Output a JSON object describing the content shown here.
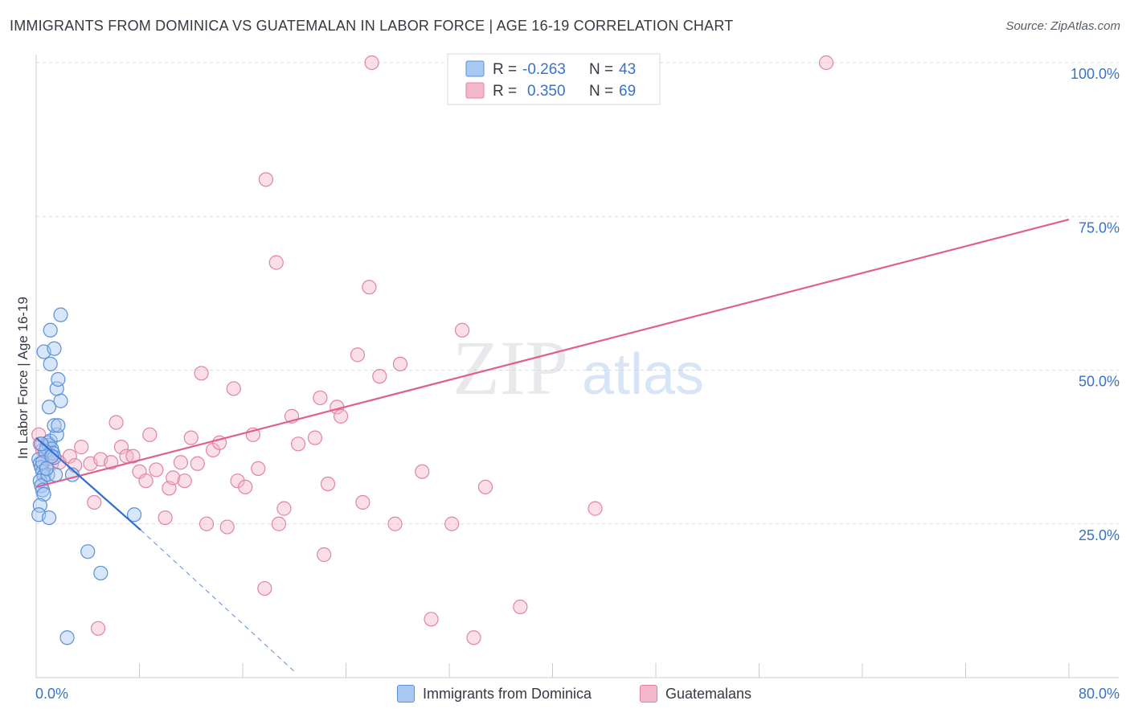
{
  "header": {
    "title": "IMMIGRANTS FROM DOMINICA VS GUATEMALAN IN LABOR FORCE | AGE 16-19 CORRELATION CHART",
    "source": "Source: ZipAtlas.com"
  },
  "colors": {
    "blue_fill": "#a9c8f2",
    "blue_stroke": "#5b8fd6",
    "blue_line": "#2f6fd0",
    "pink_fill": "#f5b8cb",
    "pink_stroke": "#e283a3",
    "pink_line": "#e0608c",
    "axis_text": "#3a72c6",
    "grid": "#d9dde3"
  },
  "chart_data": {
    "type": "scatter",
    "title": "IMMIGRANTS FROM DOMINICA VS GUATEMALAN IN LABOR FORCE | AGE 16-19 CORRELATION CHART",
    "xlabel": "",
    "ylabel": "In Labor Force | Age 16-19",
    "xlim": [
      0,
      80
    ],
    "ylim": [
      0,
      100
    ],
    "x_tick_labels": [
      "0.0%",
      "80.0%"
    ],
    "y_ticks": [
      25,
      50,
      75,
      100
    ],
    "y_tick_labels": [
      "25.0%",
      "50.0%",
      "75.0%",
      "100.0%"
    ],
    "grid": true,
    "watermark": {
      "zip": "ZIP",
      "atlas": "atlas"
    },
    "legend": {
      "rows": [
        {
          "r_label": "R =",
          "r_value": "-0.263",
          "n_label": "N =",
          "n_value": "43"
        },
        {
          "r_label": "R =",
          "r_value": "0.350",
          "n_label": "N =",
          "n_value": "69"
        }
      ]
    },
    "series": [
      {
        "name": "Immigrants from Dominica",
        "color": "blue",
        "points": [
          [
            0.2,
            35.5
          ],
          [
            0.3,
            34.8
          ],
          [
            0.4,
            34.2
          ],
          [
            0.5,
            33.5
          ],
          [
            0.6,
            32.8
          ],
          [
            0.3,
            32.0
          ],
          [
            0.4,
            31.2
          ],
          [
            0.5,
            30.5
          ],
          [
            0.6,
            29.8
          ],
          [
            0.3,
            28.0
          ],
          [
            0.2,
            26.5
          ],
          [
            0.8,
            37.5
          ],
          [
            0.9,
            38.2
          ],
          [
            1.0,
            37.8
          ],
          [
            1.1,
            38.5
          ],
          [
            1.2,
            37.2
          ],
          [
            1.3,
            36.5
          ],
          [
            0.7,
            36.8
          ],
          [
            0.5,
            35.0
          ],
          [
            0.9,
            33.0
          ],
          [
            1.5,
            33.0
          ],
          [
            1.4,
            35.8
          ],
          [
            1.6,
            39.5
          ],
          [
            1.4,
            41.0
          ],
          [
            1.7,
            41.0
          ],
          [
            1.0,
            44.0
          ],
          [
            1.9,
            45.0
          ],
          [
            1.6,
            47.0
          ],
          [
            1.7,
            48.5
          ],
          [
            1.1,
            51.0
          ],
          [
            0.6,
            53.0
          ],
          [
            1.4,
            53.5
          ],
          [
            1.1,
            56.5
          ],
          [
            1.9,
            59.0
          ],
          [
            2.8,
            33.0
          ],
          [
            1.0,
            26.0
          ],
          [
            7.6,
            26.5
          ],
          [
            4.0,
            20.5
          ],
          [
            5.0,
            17.0
          ],
          [
            2.4,
            6.5
          ],
          [
            0.8,
            34.0
          ],
          [
            1.2,
            36.0
          ],
          [
            0.4,
            38.0
          ]
        ]
      },
      {
        "name": "Guatemalans",
        "color": "pink",
        "points": [
          [
            0.2,
            39.5
          ],
          [
            0.3,
            38.0
          ],
          [
            0.5,
            37.0
          ],
          [
            0.7,
            36.0
          ],
          [
            0.9,
            35.5
          ],
          [
            1.2,
            34.8
          ],
          [
            1.8,
            35.0
          ],
          [
            2.6,
            36.0
          ],
          [
            3.0,
            34.5
          ],
          [
            3.5,
            37.5
          ],
          [
            4.2,
            34.8
          ],
          [
            4.5,
            28.5
          ],
          [
            5.0,
            35.5
          ],
          [
            5.8,
            35.0
          ],
          [
            6.2,
            41.5
          ],
          [
            6.6,
            37.5
          ],
          [
            7.0,
            36.0
          ],
          [
            7.5,
            36.0
          ],
          [
            8.0,
            33.5
          ],
          [
            8.5,
            32.0
          ],
          [
            8.8,
            39.5
          ],
          [
            9.3,
            33.8
          ],
          [
            10.0,
            26.0
          ],
          [
            10.3,
            30.8
          ],
          [
            10.6,
            32.5
          ],
          [
            11.2,
            35.0
          ],
          [
            11.5,
            32.0
          ],
          [
            12.0,
            39.0
          ],
          [
            12.5,
            34.8
          ],
          [
            12.8,
            49.5
          ],
          [
            13.2,
            25.0
          ],
          [
            13.7,
            37.0
          ],
          [
            14.2,
            38.2
          ],
          [
            14.8,
            24.5
          ],
          [
            15.3,
            47.0
          ],
          [
            15.6,
            32.0
          ],
          [
            16.2,
            31.0
          ],
          [
            16.8,
            39.5
          ],
          [
            17.2,
            34.0
          ],
          [
            17.7,
            14.5
          ],
          [
            17.8,
            81.0
          ],
          [
            18.6,
            67.5
          ],
          [
            18.8,
            25.0
          ],
          [
            19.2,
            27.5
          ],
          [
            19.8,
            42.5
          ],
          [
            20.3,
            38.0
          ],
          [
            21.6,
            39.0
          ],
          [
            22.0,
            45.5
          ],
          [
            22.3,
            20.0
          ],
          [
            22.6,
            31.5
          ],
          [
            23.3,
            44.0
          ],
          [
            23.6,
            42.5
          ],
          [
            24.9,
            52.5
          ],
          [
            25.3,
            28.5
          ],
          [
            25.8,
            63.5
          ],
          [
            26.0,
            100.0
          ],
          [
            26.6,
            49.0
          ],
          [
            27.8,
            25.0
          ],
          [
            28.2,
            51.0
          ],
          [
            29.9,
            33.5
          ],
          [
            30.6,
            9.5
          ],
          [
            32.2,
            25.0
          ],
          [
            33.0,
            56.5
          ],
          [
            33.9,
            6.5
          ],
          [
            34.8,
            31.0
          ],
          [
            37.5,
            11.5
          ],
          [
            43.3,
            27.5
          ],
          [
            61.2,
            100.0
          ],
          [
            4.8,
            8.0
          ]
        ]
      }
    ],
    "trend_lines": [
      {
        "series": "Immigrants from Dominica",
        "x": [
          0,
          8.1
        ],
        "y": [
          39.0,
          24.0
        ],
        "dashed_x": [
          8.1,
          20.0
        ],
        "dashed_y": [
          24.0,
          1.0
        ]
      },
      {
        "series": "Guatemalans",
        "x": [
          0,
          80
        ],
        "y": [
          31.0,
          74.5
        ]
      }
    ]
  },
  "legend_bottom": [
    {
      "label": "Immigrants from Dominica",
      "color": "blue"
    },
    {
      "label": "Guatemalans",
      "color": "pink"
    }
  ]
}
